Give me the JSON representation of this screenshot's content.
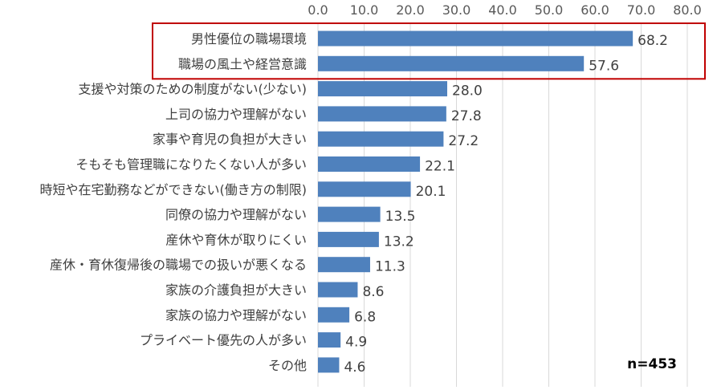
{
  "chart_data": {
    "type": "bar",
    "orientation": "horizontal",
    "categories": [
      "男性優位の職場環境",
      "職場の風土や経営意識",
      "支援や対策のための制度がない(少ない)",
      "上司の協力や理解がない",
      "家事や育児の負担が大きい",
      "そもそも管理職になりたくない人が多い",
      "時短や在宅勤務などができない(働き方の制限)",
      "同僚の協力や理解がない",
      "産休や育休が取りにくい",
      "産休・育休復帰後の職場での扱いが悪くなる",
      "家族の介護負担が大きい",
      "家族の協力や理解がない",
      "プライベート優先の人が多い",
      "その他"
    ],
    "values": [
      68.2,
      57.6,
      28.0,
      27.8,
      27.2,
      22.1,
      20.1,
      13.5,
      13.2,
      11.3,
      8.6,
      6.8,
      4.9,
      4.6
    ],
    "value_labels": [
      "68.2",
      "57.6",
      "28.0",
      "27.8",
      "27.2",
      "22.1",
      "20.1",
      "13.5",
      "13.2",
      "11.3",
      "8.6",
      "6.8",
      "4.9",
      "4.6"
    ],
    "xlim": [
      0,
      80
    ],
    "x_ticks": [
      "0.0",
      "10.0",
      "20.0",
      "30.0",
      "40.0",
      "50.0",
      "60.0",
      "70.0",
      "80.0"
    ],
    "grid": true,
    "highlighted_categories": [
      0,
      1
    ],
    "note": "n=453",
    "colors": {
      "bar": "#4f81bd",
      "grid": "#d9d9d9",
      "highlight": "#c00000"
    }
  }
}
